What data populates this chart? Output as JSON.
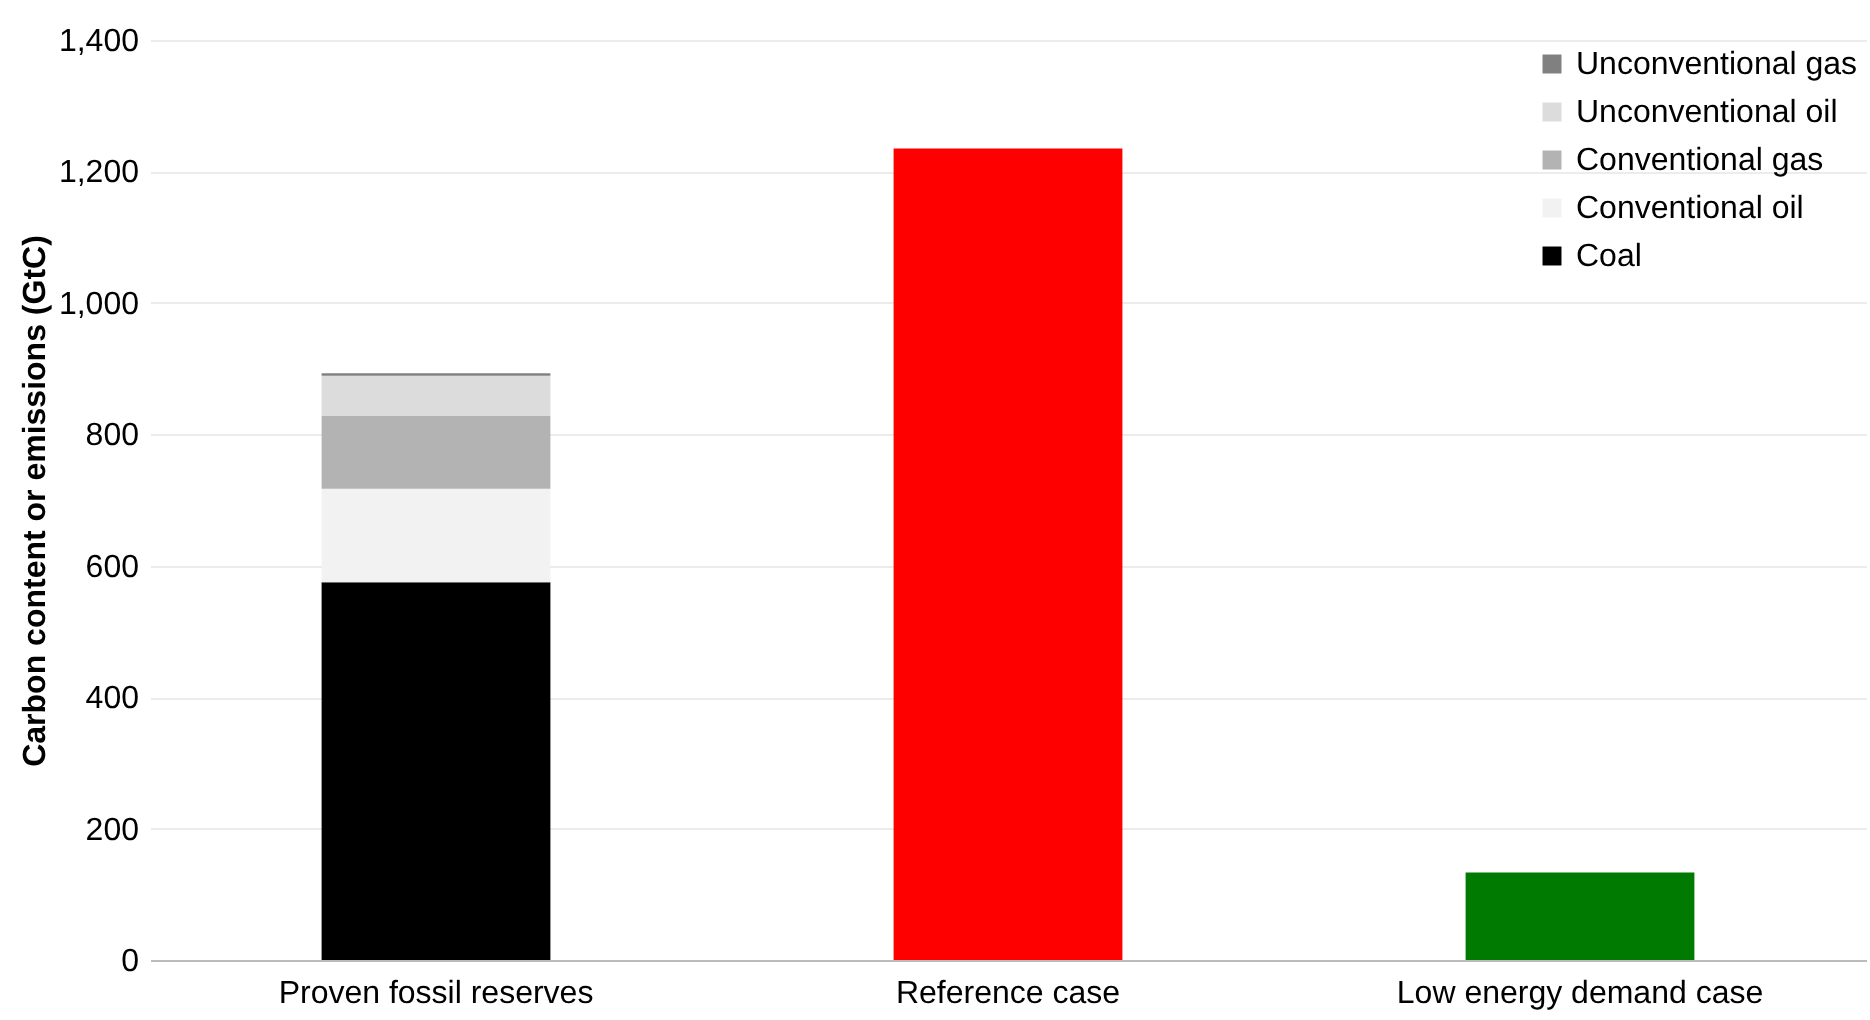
{
  "chart_data": {
    "type": "bar",
    "stacked": true,
    "ylabel": "Carbon content or emissions (GtC)",
    "categories": [
      "Proven fossil reserves",
      "Reference case",
      "Low energy demand case"
    ],
    "series": [
      {
        "name": "Coal",
        "color": "#000000",
        "values": [
          575,
          null,
          null
        ]
      },
      {
        "name": "Conventional oil",
        "color": "#f2f2f2",
        "values": [
          142,
          null,
          null
        ]
      },
      {
        "name": "Conventional gas",
        "color": "#b3b3b3",
        "values": [
          111,
          null,
          null
        ]
      },
      {
        "name": "Unconventional oil",
        "color": "#dcdcdc",
        "values": [
          61,
          null,
          null
        ]
      },
      {
        "name": "Unconventional gas",
        "color": "#808080",
        "values": [
          4,
          null,
          null
        ]
      },
      {
        "color": "#ff0000",
        "values": [
          null,
          1235,
          null
        ]
      },
      {
        "color": "#007a00",
        "values": [
          null,
          null,
          133
        ]
      }
    ],
    "ylim": [
      0,
      1400
    ],
    "yticks": [
      0,
      200,
      400,
      600,
      800,
      {
        "value": 1000,
        "label": "1,000"
      },
      {
        "value": 1200,
        "label": "1,200"
      },
      {
        "value": 1400,
        "label": "1,400"
      }
    ],
    "grid": "y",
    "legend": "top right"
  }
}
